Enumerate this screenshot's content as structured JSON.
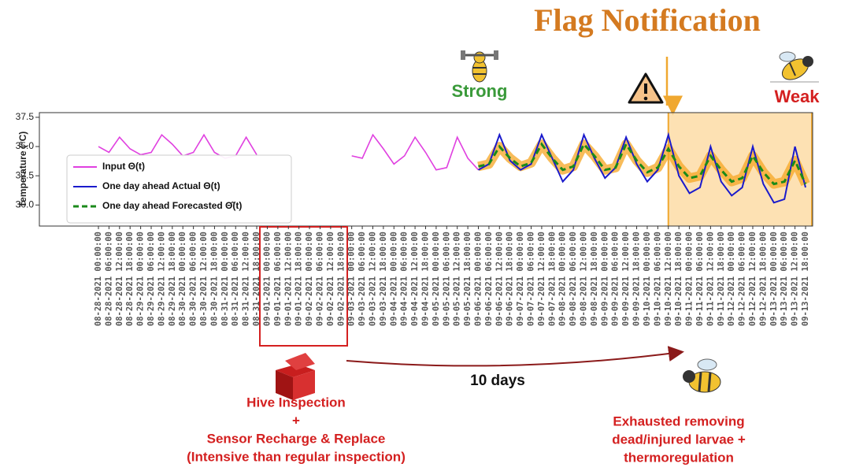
{
  "chart_data": {
    "type": "line",
    "title": "Flag Notification",
    "y_label": "Temperature (°C)",
    "categories": [
      "08-28-2021 00:00:00",
      "08-28-2021 06:00:00",
      "08-28-2021 12:00:00",
      "08-28-2021 18:00:00",
      "08-29-2021 00:00:00",
      "08-29-2021 06:00:00",
      "08-29-2021 12:00:00",
      "08-29-2021 18:00:00",
      "08-30-2021 00:00:00",
      "08-30-2021 06:00:00",
      "08-30-2021 12:00:00",
      "08-30-2021 18:00:00",
      "08-31-2021 00:00:00",
      "08-31-2021 06:00:00",
      "08-31-2021 12:00:00",
      "08-31-2021 18:00:00",
      "09-01-2021 00:00:00",
      "09-01-2021 06:00:00",
      "09-01-2021 12:00:00",
      "09-01-2021 18:00:00",
      "09-02-2021 00:00:00",
      "09-02-2021 06:00:00",
      "09-02-2021 12:00:00",
      "09-02-2021 18:00:00",
      "09-03-2021 00:00:00",
      "09-03-2021 06:00:00",
      "09-03-2021 12:00:00",
      "09-03-2021 18:00:00",
      "09-04-2021 00:00:00",
      "09-04-2021 06:00:00",
      "09-04-2021 12:00:00",
      "09-04-2021 18:00:00",
      "09-05-2021 00:00:00",
      "09-05-2021 06:00:00",
      "09-05-2021 12:00:00",
      "09-05-2021 18:00:00",
      "09-06-2021 00:00:00",
      "09-06-2021 06:00:00",
      "09-06-2021 12:00:00",
      "09-06-2021 18:00:00",
      "09-07-2021 00:00:00",
      "09-07-2021 06:00:00",
      "09-07-2021 12:00:00",
      "09-07-2021 18:00:00",
      "09-08-2021 00:00:00",
      "09-08-2021 06:00:00",
      "09-08-2021 12:00:00",
      "09-08-2021 18:00:00",
      "09-09-2021 00:00:00",
      "09-09-2021 06:00:00",
      "09-09-2021 12:00:00",
      "09-09-2021 18:00:00",
      "09-10-2021 00:00:00",
      "09-10-2021 06:00:00",
      "09-10-2021 12:00:00",
      "09-10-2021 18:00:00",
      "09-11-2021 00:00:00",
      "09-11-2021 06:00:00",
      "09-11-2021 12:00:00",
      "09-11-2021 18:00:00",
      "09-12-2021 00:00:00",
      "09-12-2021 06:00:00",
      "09-12-2021 12:00:00",
      "09-12-2021 18:00:00",
      "09-13-2021 00:00:00",
      "09-13-2021 06:00:00",
      "09-13-2021 12:00:00",
      "09-13-2021 18:00:00"
    ],
    "series": [
      {
        "name": "Input Θ(t)",
        "color": "#e040e0",
        "values": [
          35,
          34.5,
          35.8,
          34.8,
          34.3,
          34.5,
          36,
          35.2,
          34.2,
          34.5,
          36,
          34.5,
          34,
          34.2,
          35.8,
          34.3,
          null,
          null,
          null,
          null,
          null,
          null,
          null,
          null,
          34.2,
          34,
          36,
          34.8,
          33.5,
          34.2,
          35.8,
          34.5,
          33,
          33.2,
          35.8,
          34,
          33,
          null,
          null,
          null,
          null,
          null,
          null,
          null,
          null,
          null,
          null,
          null,
          null,
          null,
          null,
          null,
          null,
          null,
          null,
          null,
          null,
          null,
          null,
          null,
          null,
          null,
          null,
          null,
          null,
          null,
          null,
          null
        ]
      },
      {
        "name": "One day ahead Actual Θ(t)",
        "color": "#1a1acc",
        "values": [
          null,
          null,
          null,
          null,
          null,
          null,
          null,
          null,
          null,
          null,
          null,
          null,
          null,
          null,
          null,
          null,
          null,
          null,
          null,
          null,
          null,
          null,
          null,
          null,
          null,
          null,
          null,
          null,
          null,
          null,
          null,
          null,
          null,
          null,
          null,
          null,
          33,
          33.5,
          36,
          33.8,
          33,
          33.5,
          36,
          34,
          32,
          33,
          36,
          34,
          32.3,
          33.2,
          35.8,
          33.5,
          32,
          33,
          36,
          32.5,
          31,
          31.5,
          35,
          32,
          30.8,
          31.5,
          35,
          31.8,
          30.2,
          30.5,
          35,
          31.5
        ]
      },
      {
        "name": "One day ahead Forecasted Θ̂(t)",
        "color": "#1a8a1a",
        "values": [
          null,
          null,
          null,
          null,
          null,
          null,
          null,
          null,
          null,
          null,
          null,
          null,
          null,
          null,
          null,
          null,
          null,
          null,
          null,
          null,
          null,
          null,
          null,
          null,
          null,
          null,
          null,
          null,
          null,
          null,
          null,
          null,
          null,
          null,
          null,
          null,
          33.3,
          33.5,
          35,
          34,
          33.3,
          33.6,
          35.2,
          34,
          33,
          33.3,
          35.2,
          34.2,
          33,
          33.2,
          35.2,
          33.8,
          32.8,
          33.2,
          34.8,
          33.3,
          32.3,
          32.5,
          34.2,
          33,
          32,
          32.3,
          34.2,
          32.8,
          31.8,
          32,
          33.8,
          31.8
        ]
      }
    ],
    "ylim": [
      28.2,
      37.9
    ],
    "yticks": [
      {
        "value": 30,
        "label": "30.0"
      },
      32.5,
      {
        "value": 35,
        "label": "35.0"
      },
      37.5
    ],
    "grid": false,
    "annotations": {
      "strong": "Strong",
      "weak": "Weak",
      "interval": "10 days",
      "inspection": [
        "Hive Inspection",
        "+",
        "Sensor Recharge & Replace",
        "(Intensive than regular inspection)"
      ],
      "outcome": [
        "Exhausted removing",
        "dead/injured larvae +",
        "thermoregulation"
      ]
    }
  }
}
